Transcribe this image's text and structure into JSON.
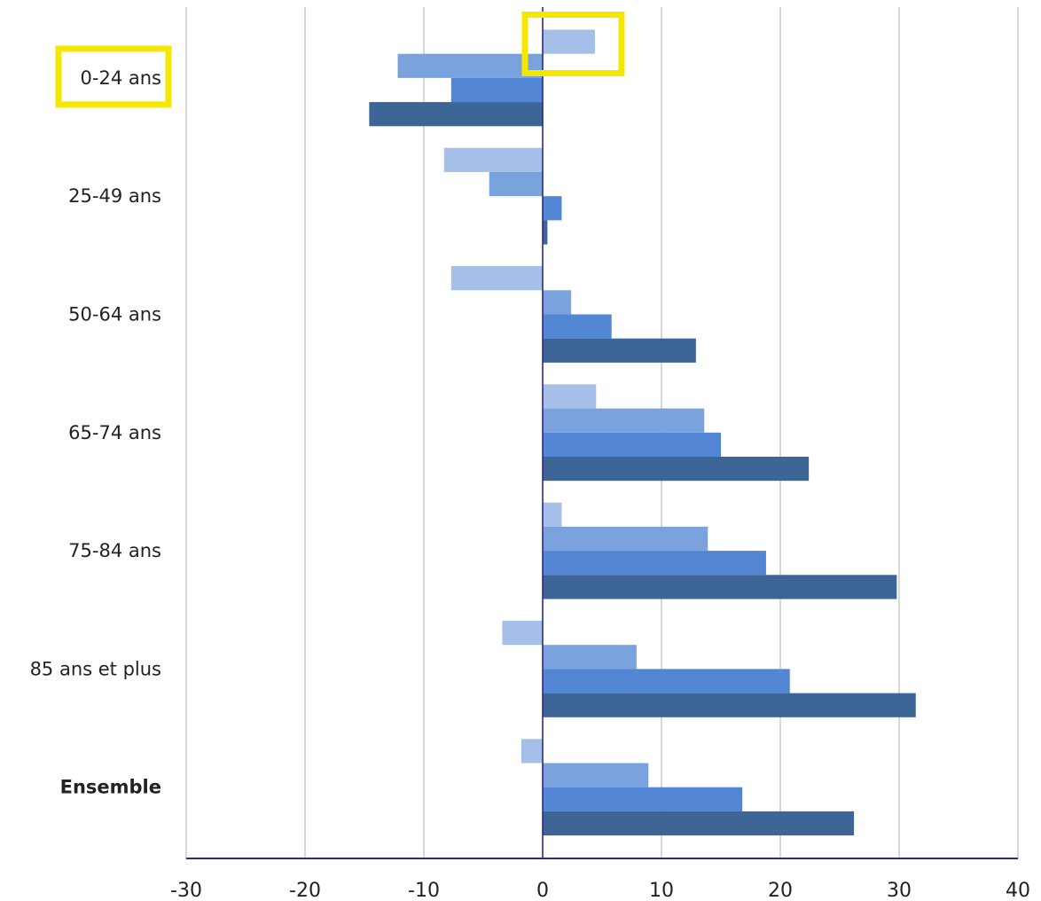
{
  "colors": {
    "series": [
      "#a5bfe9",
      "#7aa3dd",
      "#5285d4",
      "#3d6697"
    ],
    "grid": "#bdbdbd",
    "axis": "#2b2a8c",
    "highlight": "#f5e800"
  },
  "chart_data": {
    "type": "bar",
    "orientation": "horizontal",
    "title": "",
    "xlabel": "",
    "ylabel": "",
    "xlim": [
      -30,
      40
    ],
    "xticks": [
      -30,
      -20,
      -10,
      0,
      10,
      20,
      30,
      40
    ],
    "xtick_labels": [
      "-30",
      "-20",
      "-10",
      "0",
      "10",
      "20",
      "30",
      "40"
    ],
    "grid": true,
    "legend": "none",
    "categories": [
      "0-24 ans",
      "25-49 ans",
      "50-64 ans",
      "65-74 ans",
      "75-84 ans",
      "85 ans et plus",
      "Ensemble"
    ],
    "bold_categories": [
      "Ensemble"
    ],
    "series": [
      {
        "values": [
          4.4,
          -8.3,
          -7.7,
          4.5,
          1.6,
          -3.4,
          -1.8
        ]
      },
      {
        "values": [
          -12.2,
          -4.5,
          2.4,
          13.6,
          13.9,
          7.9,
          8.9
        ]
      },
      {
        "values": [
          -7.7,
          1.6,
          5.8,
          15.0,
          18.8,
          20.8,
          16.8
        ]
      },
      {
        "values": [
          -14.6,
          0.4,
          12.9,
          22.4,
          29.8,
          31.4,
          26.2
        ]
      }
    ],
    "highlights": [
      {
        "kind": "category-label",
        "category": 0
      },
      {
        "kind": "bar",
        "category": 0,
        "series": 0
      }
    ]
  }
}
